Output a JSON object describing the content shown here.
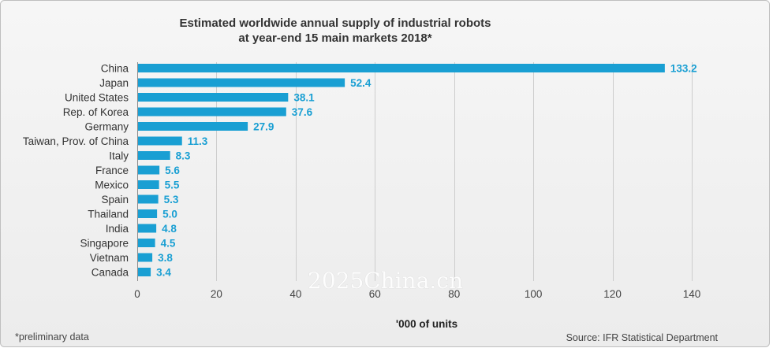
{
  "chart_data": {
    "type": "bar",
    "orientation": "horizontal",
    "title_lines": [
      "Estimated worldwide annual supply of industrial robots",
      "at year-end 15 main markets 2018*"
    ],
    "categories": [
      "China",
      "Japan",
      "United States",
      "Rep. of Korea",
      "Germany",
      "Taiwan, Prov. of China",
      "Italy",
      "France",
      "Mexico",
      "Spain",
      "Thailand",
      "India",
      "Singapore",
      "Vietnam",
      "Canada"
    ],
    "values": [
      133.2,
      52.4,
      38.1,
      37.6,
      27.9,
      11.3,
      8.3,
      5.6,
      5.5,
      5.3,
      5.0,
      4.8,
      4.5,
      3.8,
      3.4
    ],
    "data_labels": [
      "133.2",
      "52.4",
      "38.1",
      "37.6",
      "27.9",
      "11.3",
      "8.3",
      "5.6",
      "5.5",
      "5.3",
      "5.0",
      "4.8",
      "4.5",
      "3.8",
      "3.4"
    ],
    "xlabel": "'000 of units",
    "xlim": [
      0,
      140
    ],
    "xticks": [
      0,
      20,
      40,
      60,
      80,
      100,
      120,
      140
    ],
    "grid": true,
    "legend": "none",
    "colors": {
      "bar": "#199fd3",
      "data_label": "#199fd3"
    }
  },
  "footnote": "*preliminary data",
  "source": "Source: IFR Statistical Department",
  "watermark": "2025China.cn"
}
